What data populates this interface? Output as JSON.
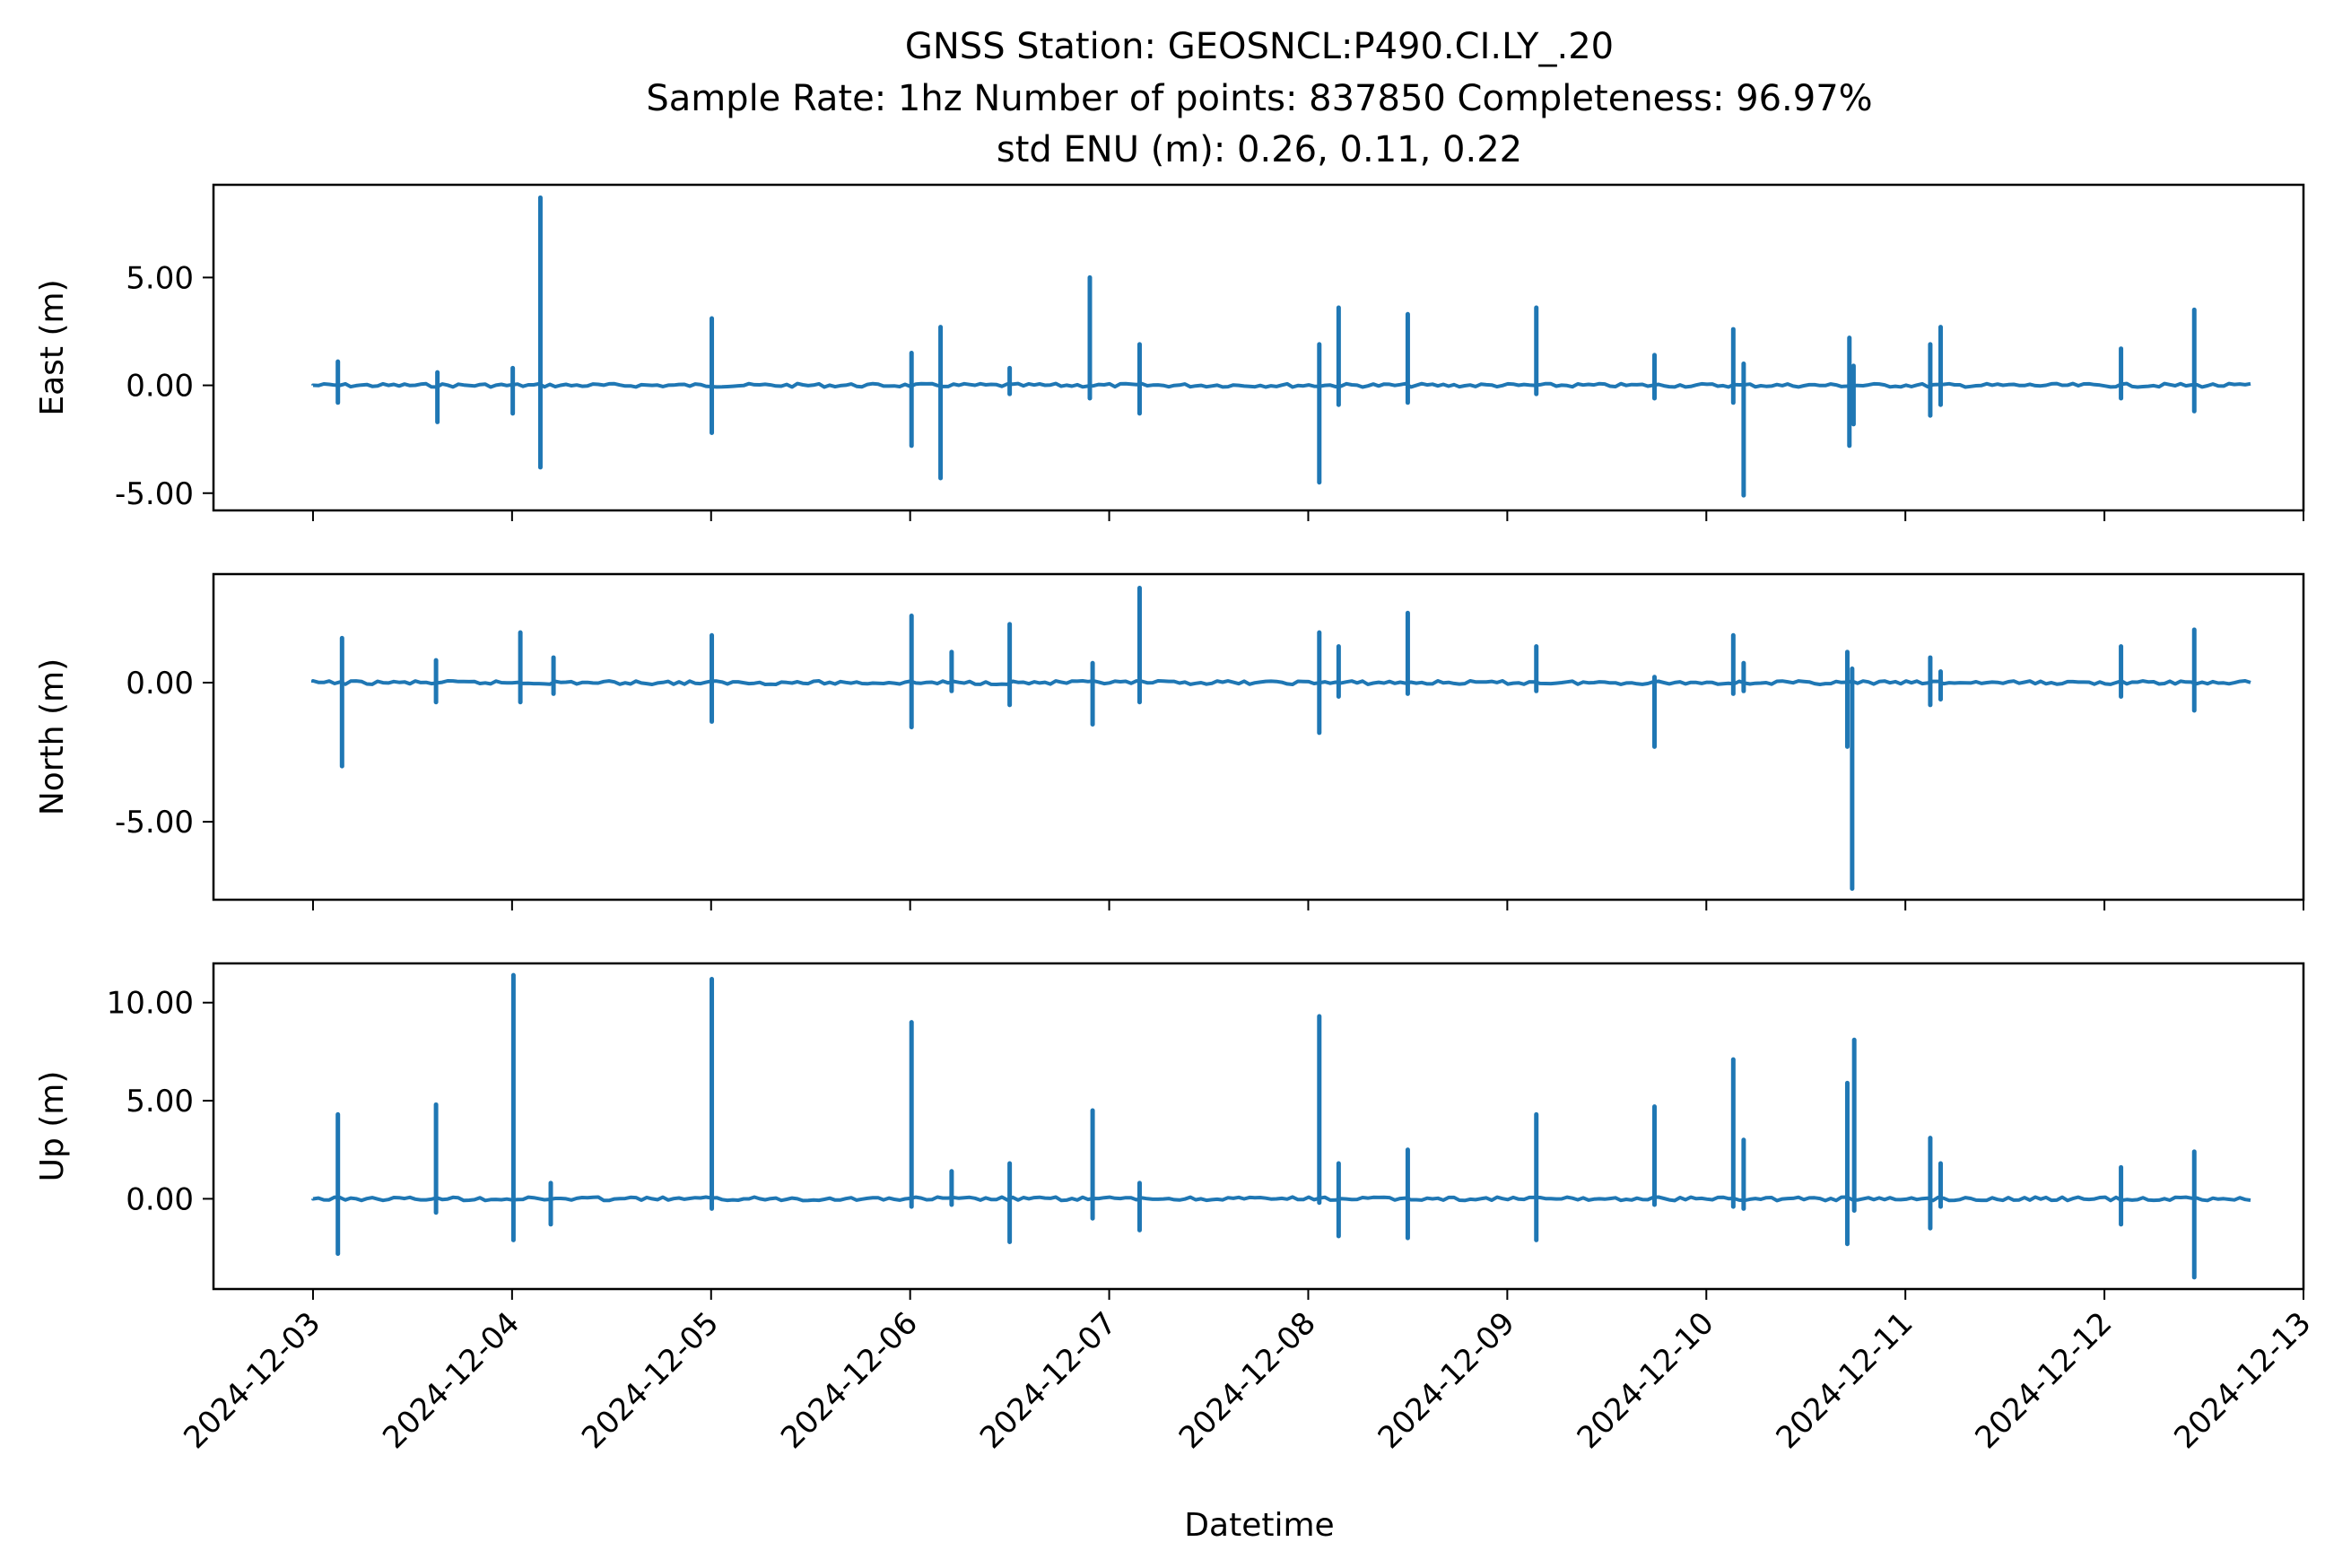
{
  "title_lines": [
    "GNSS Station: GEOSNCL:P490.CI.LY_.20",
    "Sample Rate: 1hz   Number of points: 837850    Completeness:  96.97%",
    "std ENU (m):  0.26, 0.11, 0.22"
  ],
  "colors": {
    "series": "#1f77b4",
    "axes": "#000000",
    "background": "#ffffff"
  },
  "chart_data": [
    {
      "type": "line",
      "ylabel": "East (m)",
      "xlim": [
        "2024-12-02T12:00",
        "2024-12-13T00:00"
      ],
      "ylim": [
        -5.8,
        9.3
      ],
      "yticks": [
        {
          "value": 5,
          "label": "5.00"
        },
        {
          "value": 0,
          "label": "0.00"
        },
        {
          "value": -5,
          "label": "-5.00"
        }
      ],
      "xtick_labels": [],
      "series": [
        {
          "start": "2024-12-03T00:00",
          "end": "2024-12-12T18:00",
          "baseline": 0.0,
          "spikes": [
            [
              "2024-12-03T03:00",
              1.1,
              -0.8
            ],
            [
              "2024-12-03T15:00",
              0.6,
              -1.7
            ],
            [
              "2024-12-04T00:05",
              0.8,
              -1.3
            ],
            [
              "2024-12-04T03:25",
              8.7,
              -3.8
            ],
            [
              "2024-12-05T00:05",
              3.1,
              -2.2
            ],
            [
              "2024-12-06T00:10",
              1.5,
              -2.8
            ],
            [
              "2024-12-06T03:40",
              2.7,
              -4.3
            ],
            [
              "2024-12-06T12:00",
              0.8,
              -0.4
            ],
            [
              "2024-12-06T21:40",
              5.0,
              -0.6
            ],
            [
              "2024-12-07T03:40",
              1.9,
              -1.3
            ],
            [
              "2024-12-08T01:20",
              1.9,
              -4.5
            ],
            [
              "2024-12-08T03:40",
              3.6,
              -0.9
            ],
            [
              "2024-12-08T12:00",
              3.3,
              -0.8
            ],
            [
              "2024-12-09T03:30",
              3.6,
              -0.4
            ],
            [
              "2024-12-09T17:45",
              1.4,
              -0.6
            ],
            [
              "2024-12-10T03:15",
              2.6,
              -0.8
            ],
            [
              "2024-12-10T04:30",
              1.0,
              -5.1
            ],
            [
              "2024-12-10T17:15",
              2.2,
              -2.8
            ],
            [
              "2024-12-10T17:45",
              0.9,
              -1.8
            ],
            [
              "2024-12-11T03:00",
              1.9,
              -1.4
            ],
            [
              "2024-12-11T04:15",
              2.7,
              -0.9
            ],
            [
              "2024-12-12T02:00",
              1.7,
              -0.6
            ],
            [
              "2024-12-12T10:50",
              3.5,
              -1.2
            ]
          ]
        }
      ]
    },
    {
      "type": "line",
      "ylabel": "North (m)",
      "xlim": [
        "2024-12-02T12:00",
        "2024-12-13T00:00"
      ],
      "ylim": [
        -7.8,
        3.9
      ],
      "yticks": [
        {
          "value": 0,
          "label": "0.00"
        },
        {
          "value": -5,
          "label": "-5.00"
        }
      ],
      "xtick_labels": [],
      "series": [
        {
          "start": "2024-12-03T00:00",
          "end": "2024-12-12T18:00",
          "baseline": 0.0,
          "spikes": [
            [
              "2024-12-03T03:30",
              1.6,
              -3.0
            ],
            [
              "2024-12-03T14:50",
              0.8,
              -0.7
            ],
            [
              "2024-12-04T01:00",
              1.8,
              -0.7
            ],
            [
              "2024-12-04T05:00",
              0.9,
              -0.4
            ],
            [
              "2024-12-05T00:05",
              1.7,
              -1.4
            ],
            [
              "2024-12-06T00:10",
              2.4,
              -1.6
            ],
            [
              "2024-12-06T05:00",
              1.1,
              -0.3
            ],
            [
              "2024-12-06T12:00",
              2.1,
              -0.8
            ],
            [
              "2024-12-06T22:00",
              0.7,
              -1.5
            ],
            [
              "2024-12-07T03:40",
              3.4,
              -0.7
            ],
            [
              "2024-12-08T01:20",
              1.8,
              -1.8
            ],
            [
              "2024-12-08T03:40",
              1.3,
              -0.5
            ],
            [
              "2024-12-08T12:00",
              2.5,
              -0.4
            ],
            [
              "2024-12-09T03:30",
              1.3,
              -0.3
            ],
            [
              "2024-12-09T17:45",
              0.2,
              -2.3
            ],
            [
              "2024-12-10T03:15",
              1.7,
              -0.4
            ],
            [
              "2024-12-10T04:30",
              0.7,
              -0.3
            ],
            [
              "2024-12-10T17:00",
              1.1,
              -2.3
            ],
            [
              "2024-12-10T17:35",
              0.5,
              -7.4
            ],
            [
              "2024-12-11T03:00",
              0.9,
              -0.8
            ],
            [
              "2024-12-11T04:15",
              0.4,
              -0.6
            ],
            [
              "2024-12-12T02:00",
              1.3,
              -0.5
            ],
            [
              "2024-12-12T10:50",
              1.9,
              -1.0
            ]
          ]
        }
      ]
    },
    {
      "type": "line",
      "ylabel": "Up (m)",
      "xlabel": "Datetime",
      "xlim": [
        "2024-12-02T12:00",
        "2024-12-13T00:00"
      ],
      "ylim": [
        -4.6,
        12.0
      ],
      "yticks": [
        {
          "value": 10,
          "label": "10.00"
        },
        {
          "value": 5,
          "label": "5.00"
        },
        {
          "value": 0,
          "label": "0.00"
        }
      ],
      "xtick_labels": [
        "2024-12-03",
        "2024-12-04",
        "2024-12-05",
        "2024-12-06",
        "2024-12-07",
        "2024-12-08",
        "2024-12-09",
        "2024-12-10",
        "2024-12-11",
        "2024-12-12",
        "2024-12-13"
      ],
      "series": [
        {
          "start": "2024-12-03T00:00",
          "end": "2024-12-12T18:00",
          "baseline": 0.0,
          "spikes": [
            [
              "2024-12-03T03:00",
              4.3,
              -2.8
            ],
            [
              "2024-12-03T14:50",
              4.8,
              -0.7
            ],
            [
              "2024-12-04T00:10",
              11.4,
              -2.1
            ],
            [
              "2024-12-04T04:40",
              0.8,
              -1.3
            ],
            [
              "2024-12-05T00:05",
              11.2,
              -0.5
            ],
            [
              "2024-12-06T00:10",
              9.0,
              -0.4
            ],
            [
              "2024-12-06T05:00",
              1.4,
              -0.3
            ],
            [
              "2024-12-06T12:00",
              1.8,
              -2.2
            ],
            [
              "2024-12-06T22:00",
              4.5,
              -1.0
            ],
            [
              "2024-12-07T03:40",
              0.8,
              -1.6
            ],
            [
              "2024-12-08T01:20",
              9.3,
              -0.2
            ],
            [
              "2024-12-08T03:40",
              1.8,
              -1.9
            ],
            [
              "2024-12-08T12:00",
              2.5,
              -2.0
            ],
            [
              "2024-12-09T03:30",
              4.3,
              -2.1
            ],
            [
              "2024-12-09T17:45",
              4.7,
              -0.3
            ],
            [
              "2024-12-10T03:15",
              7.1,
              -0.4
            ],
            [
              "2024-12-10T04:30",
              3.0,
              -0.5
            ],
            [
              "2024-12-10T17:00",
              5.9,
              -2.3
            ],
            [
              "2024-12-10T17:50",
              8.1,
              -0.6
            ],
            [
              "2024-12-11T03:00",
              3.1,
              -1.5
            ],
            [
              "2024-12-11T04:15",
              1.8,
              -0.4
            ],
            [
              "2024-12-12T02:00",
              1.6,
              -1.3
            ],
            [
              "2024-12-12T10:50",
              2.4,
              -4.0
            ]
          ]
        }
      ]
    }
  ]
}
